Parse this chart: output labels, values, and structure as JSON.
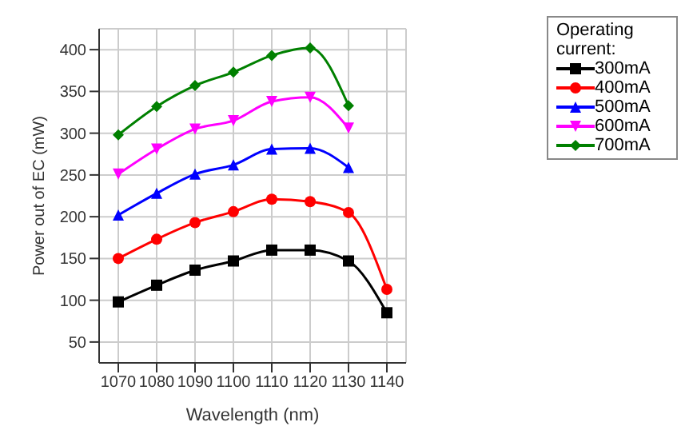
{
  "chart_data": {
    "type": "line",
    "xlabel": "Wavelength (nm)",
    "ylabel": "Power out of EC (mW)",
    "legend_title": "Operating current:",
    "legend": "top right",
    "grid": true,
    "line_style": "solid",
    "x": [
      1070,
      1080,
      1090,
      1100,
      1110,
      1120,
      1130,
      1140
    ],
    "xlim": [
      1065,
      1145
    ],
    "xticks": [
      1070,
      1080,
      1090,
      1100,
      1110,
      1120,
      1130,
      1140
    ],
    "ylim": [
      25,
      425
    ],
    "yticks": [
      50,
      100,
      150,
      200,
      250,
      300,
      350,
      400
    ],
    "series": [
      {
        "name": "300mA",
        "color": "#000000",
        "marker": "square",
        "values": [
          98,
          118,
          136,
          147,
          160,
          160,
          147,
          85
        ]
      },
      {
        "name": "400mA",
        "color": "#ff0000",
        "marker": "circle",
        "values": [
          150,
          173,
          193,
          206,
          221,
          218,
          205,
          113
        ]
      },
      {
        "name": "500mA",
        "color": "#0000ff",
        "marker": "triangle",
        "values": [
          202,
          228,
          251,
          262,
          281,
          282,
          259,
          null
        ]
      },
      {
        "name": "600mA",
        "color": "#ff00ff",
        "marker": "triangle-down",
        "values": [
          251,
          281,
          305,
          315,
          338,
          343,
          306,
          null
        ]
      },
      {
        "name": "700mA",
        "color": "#008000",
        "marker": "diamond",
        "values": [
          298,
          332,
          357,
          373,
          393,
          402,
          333,
          null
        ]
      }
    ]
  }
}
